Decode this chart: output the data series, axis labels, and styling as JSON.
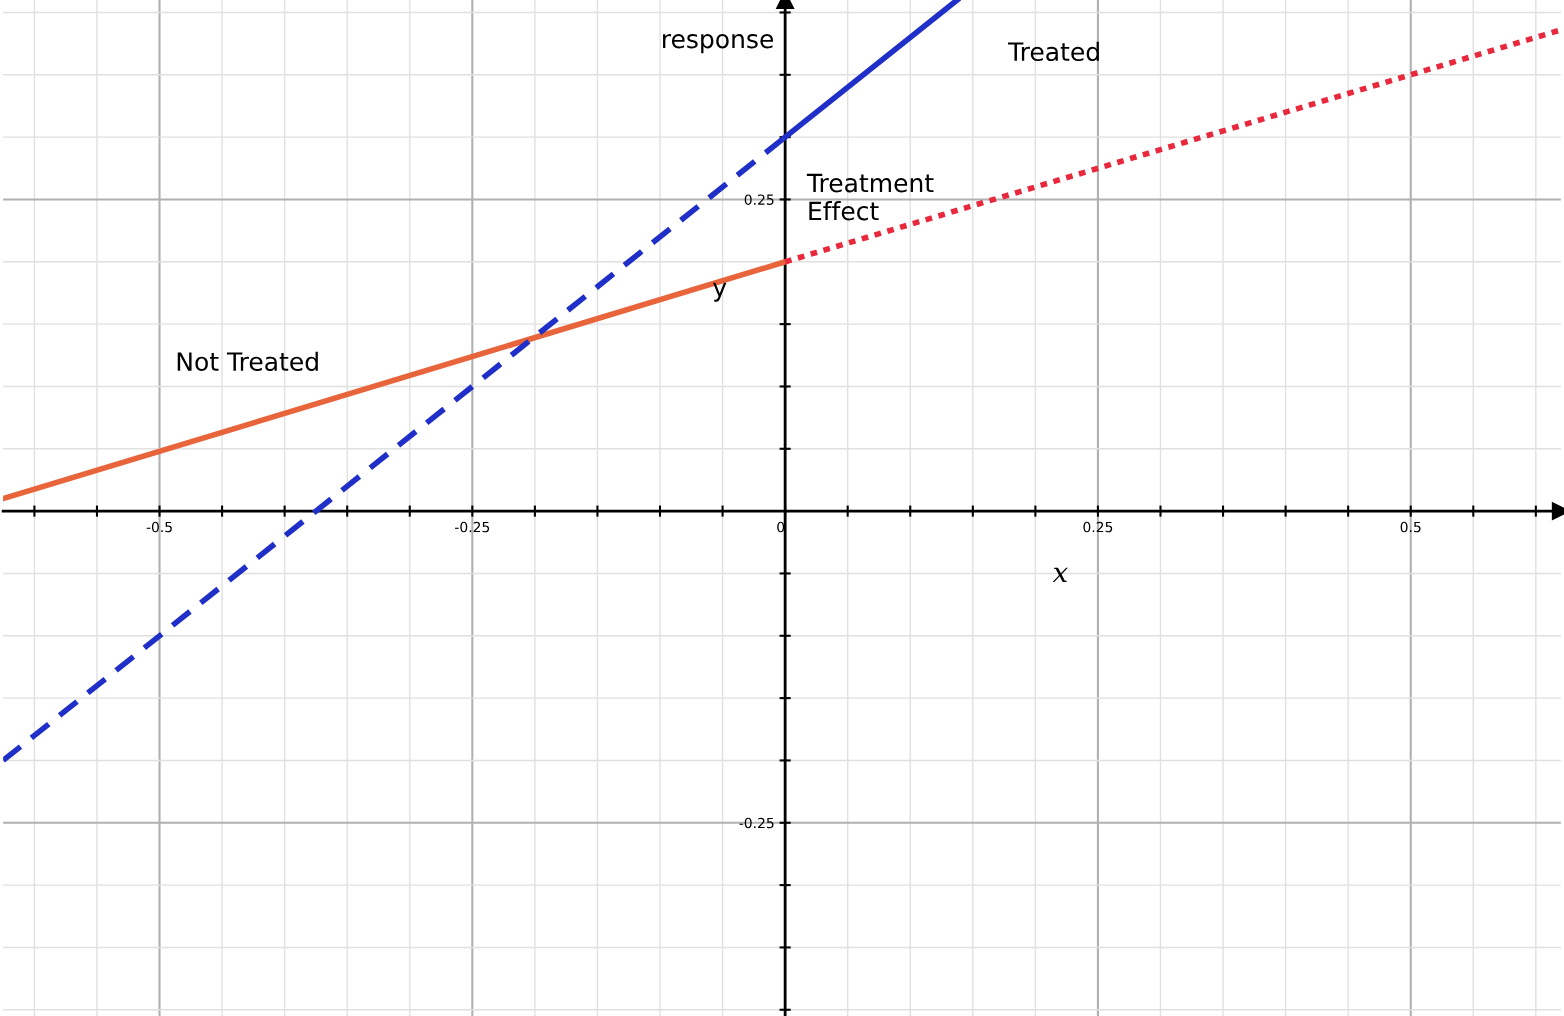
{
  "chart_data": {
    "type": "line",
    "xlabel": "x",
    "ylabel": "response",
    "xlim": [
      -0.625,
      0.62
    ],
    "ylim": [
      -0.405,
      0.41
    ],
    "xticks": [
      {
        "value": -0.6,
        "label": null
      },
      {
        "value": -0.55,
        "label": null
      },
      -0.5,
      {
        "value": -0.45,
        "label": null
      },
      {
        "value": -0.4,
        "label": null
      },
      {
        "value": -0.35,
        "label": null
      },
      {
        "value": -0.3,
        "label": null
      },
      -0.25,
      {
        "value": -0.2,
        "label": null
      },
      {
        "value": -0.15,
        "label": null
      },
      {
        "value": -0.1,
        "label": null
      },
      {
        "value": -0.05,
        "label": null
      },
      0,
      {
        "value": 0.05,
        "label": null
      },
      {
        "value": 0.1,
        "label": null
      },
      {
        "value": 0.15,
        "label": null
      },
      {
        "value": 0.2,
        "label": null
      },
      0.25,
      {
        "value": 0.3,
        "label": null
      },
      {
        "value": 0.35,
        "label": null
      },
      {
        "value": 0.4,
        "label": null
      },
      {
        "value": 0.45,
        "label": null
      },
      0.5,
      {
        "value": 0.55,
        "label": null
      },
      {
        "value": 0.6,
        "label": null
      }
    ],
    "yticks": [
      {
        "value": -0.4,
        "label": null
      },
      {
        "value": -0.35,
        "label": null
      },
      {
        "value": -0.3,
        "label": null
      },
      -0.25,
      {
        "value": -0.2,
        "label": null
      },
      {
        "value": -0.15,
        "label": null
      },
      {
        "value": -0.1,
        "label": null
      },
      {
        "value": -0.05,
        "label": null
      },
      {
        "value": 0.05,
        "label": null
      },
      {
        "value": 0.1,
        "label": null
      },
      {
        "value": 0.15,
        "label": null
      },
      {
        "value": 0.2,
        "label": null
      },
      0.25,
      {
        "value": 0.3,
        "label": null
      },
      {
        "value": 0.35,
        "label": null
      },
      {
        "value": 0.4,
        "label": null
      }
    ],
    "grid": true,
    "marker": "none",
    "series": [
      {
        "color": "#e8643a",
        "line_style": "solid",
        "x": [
          -0.625,
          0
        ],
        "values": [
          0.01,
          0.2
        ]
      },
      {
        "color": "#e8283c",
        "line_style": "dotted",
        "x": [
          0,
          0.62
        ],
        "values": [
          0.2,
          0.386
        ]
      },
      {
        "color": "#1f2fc8",
        "line_style": "dashed",
        "x": [
          -0.625,
          0
        ],
        "values": [
          -0.2,
          0.3
        ]
      },
      {
        "color": "#1f2fc8",
        "line_style": "solid",
        "x": [
          0,
          0.1375
        ],
        "values": [
          0.3,
          0.41
        ]
      }
    ],
    "annotations": [
      "Treated",
      "Not Treated",
      "Treatment\nEffect",
      "y"
    ]
  }
}
